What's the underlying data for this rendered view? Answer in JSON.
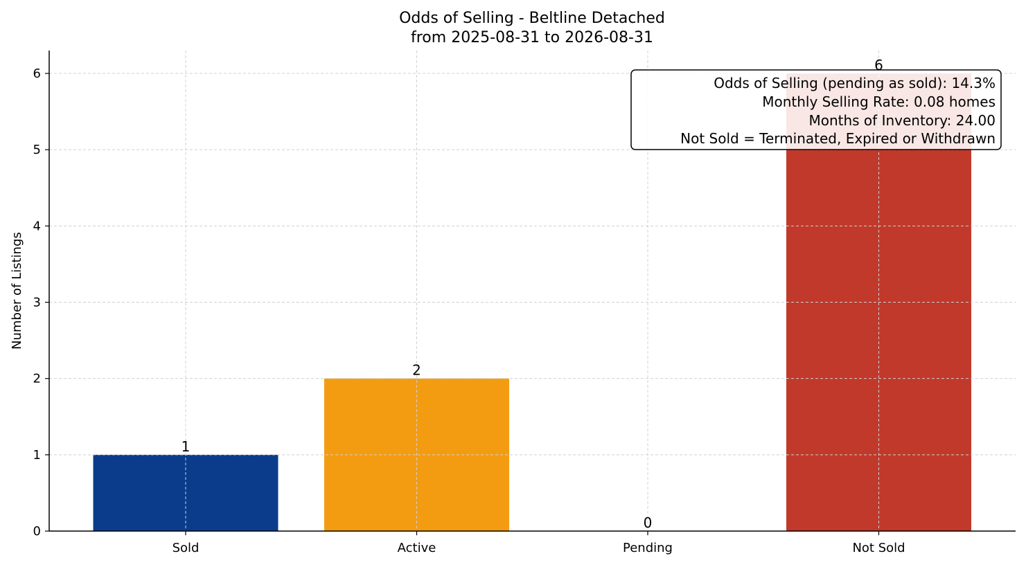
{
  "chart_data": {
    "type": "bar",
    "title": "Odds of Selling - Beltline Detached",
    "subtitle": "from 2025-08-31 to 2026-08-31",
    "xlabel": "",
    "ylabel": "Number of Listings",
    "categories": [
      "Sold",
      "Active",
      "Pending",
      "Not Sold"
    ],
    "values": [
      1,
      2,
      0,
      6
    ],
    "data_labels": [
      "1",
      "2",
      "0",
      "6"
    ],
    "colors": [
      "#0b3c8c",
      "#f39c12",
      "#7f8c8d",
      "#c0392b"
    ],
    "ylim": [
      0,
      6.3
    ],
    "yticks": [
      0,
      1,
      2,
      3,
      4,
      5,
      6
    ],
    "grid": true,
    "annotation": {
      "placement": "top-right",
      "lines": [
        "Odds of Selling (pending as sold): 14.3%",
        "Monthly Selling Rate: 0.08 homes",
        "Months of Inventory: 24.00",
        "Not Sold = Terminated, Expired or Withdrawn"
      ]
    }
  }
}
